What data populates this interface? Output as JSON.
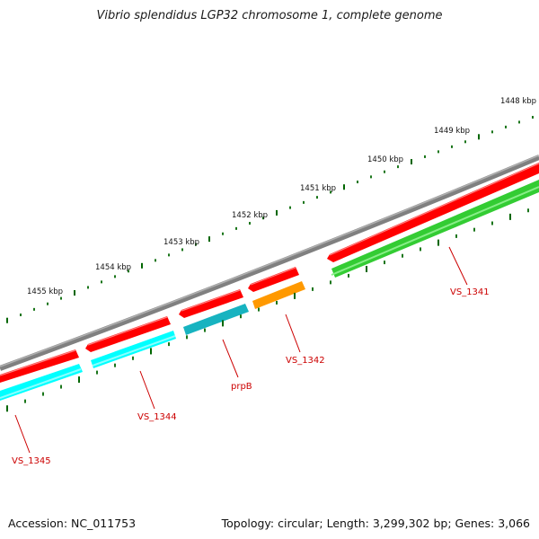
{
  "title": "Vibrio splendidus LGP32 chromosome 1, complete genome",
  "footer": {
    "accession": "Accession: NC_011753",
    "summary": "Topology: circular; Length: 3,299,302 bp; Genes: 3,066"
  },
  "ruler": [
    "1448 kbp",
    "1449 kbp",
    "1450 kbp",
    "1451 kbp",
    "1452 kbp",
    "1453 kbp",
    "1454 kbp",
    "1455 kbp"
  ],
  "genes": [
    "VS_1341",
    "VS_1342",
    "prpB",
    "VS_1344",
    "VS_1345"
  ],
  "colors": {
    "backbone": "#808080",
    "cds": "#ff0000",
    "green": "#33cc33",
    "orange": "#ff9900",
    "teal": "#17b3c0",
    "cyan": "#00ffff",
    "label": "#cc0000",
    "tick": "#006600"
  }
}
